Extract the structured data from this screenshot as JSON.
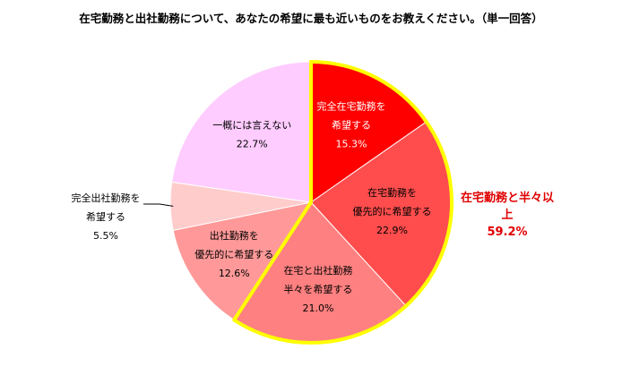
{
  "chart_data": {
    "type": "pie",
    "title": "在宅勤務と出社勤務について、あなたの希望に最も近いものをお教えください。（単一回答）",
    "slices": [
      {
        "label_lines": [
          "完全在宅勤務を",
          "希望する"
        ],
        "value_label": "15.3%",
        "value": 15.3,
        "color": "#ff0000",
        "text_color": "#ffffff"
      },
      {
        "label_lines": [
          "在宅勤務を",
          "優先的に希望する"
        ],
        "value_label": "22.9%",
        "value": 22.9,
        "color": "#ff4d4d",
        "text_color": "#000000"
      },
      {
        "label_lines": [
          "在宅と出社勤務",
          "半々を希望する"
        ],
        "value_label": "21.0%",
        "value": 21.0,
        "color": "#ff8080",
        "text_color": "#000000"
      },
      {
        "label_lines": [
          "出社勤務を",
          "優先的に希望する"
        ],
        "value_label": "12.6%",
        "value": 12.6,
        "color": "#ff9999",
        "text_color": "#000000"
      },
      {
        "label_lines": [
          "完全出社勤務を",
          "希望する"
        ],
        "value_label": "5.5%",
        "value": 5.5,
        "color": "#ffcccc",
        "text_color": "#000000"
      },
      {
        "label_lines": [
          "一概には言えない"
        ],
        "value_label": "22.7%",
        "value": 22.7,
        "color": "#ffccff",
        "text_color": "#000000"
      }
    ],
    "highlight": {
      "label": "在宅勤務と半々以上",
      "value_label": "59.2%",
      "value": 59.2,
      "outline_color": "#ffff00",
      "text_color": "#e00000"
    }
  }
}
